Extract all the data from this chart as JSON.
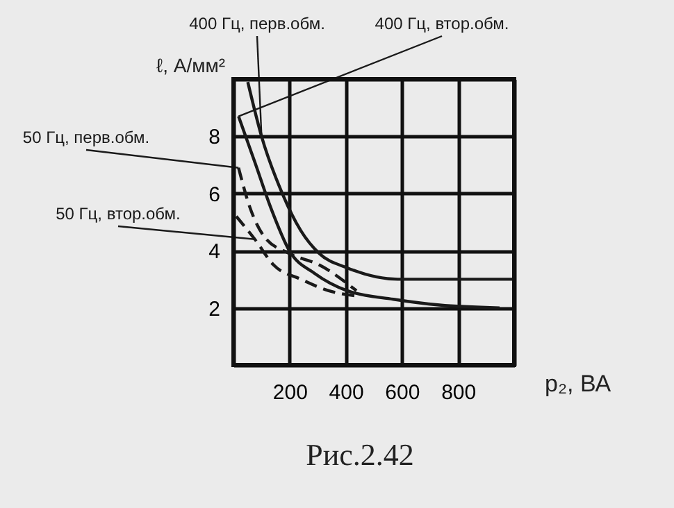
{
  "chart_data": {
    "type": "line",
    "xlabel": "p₂, ВА",
    "ylabel": "ℓ, А/мм²",
    "xlim": [
      0,
      1000
    ],
    "ylim": [
      0,
      10
    ],
    "xticks": [
      {
        "value": 0,
        "label": null
      },
      200,
      400,
      600,
      800,
      {
        "value": 1000,
        "label": null
      }
    ],
    "yticks": [
      {
        "value": 0,
        "label": null
      },
      2,
      4,
      6,
      8,
      {
        "value": 10,
        "label": null
      }
    ],
    "grid": true,
    "marker": "none",
    "annotations": [
      "Рис.2.42"
    ],
    "series": [
      {
        "name": "400 Гц, перв.обм.",
        "color": "#1a1a1a",
        "line_style": "solid",
        "x": [
          51,
          100,
          174,
          240,
          306,
          405,
          586,
          1000
        ],
        "values": [
          9.9,
          8.0,
          6.0,
          4.7,
          3.9,
          3.4,
          3.0,
          3.0
        ]
      },
      {
        "name": "400 Гц, втор.обм.",
        "color": "#1a1a1a",
        "line_style": "solid",
        "x": [
          18,
          76,
          133,
          199,
          290,
          405,
          570,
          734,
          948
        ],
        "values": [
          8.7,
          7.1,
          5.5,
          4.0,
          3.2,
          2.6,
          2.3,
          2.1,
          2.0
        ]
      },
      {
        "name": "50 Гц, перв.обм.",
        "color": "#1a1a1a",
        "line_style": "dashed",
        "x": [
          18,
          59,
          109,
          199,
          306,
          438
        ],
        "values": [
          6.9,
          5.5,
          4.5,
          3.9,
          3.5,
          2.6
        ]
      },
      {
        "name": "50 Гц, втор.обм.",
        "color": "#1a1a1a",
        "line_style": "dashed",
        "x": [
          10,
          76,
          143,
          240,
          339,
          454
        ],
        "values": [
          5.2,
          4.4,
          3.5,
          3.0,
          2.6,
          2.4
        ]
      }
    ]
  }
}
